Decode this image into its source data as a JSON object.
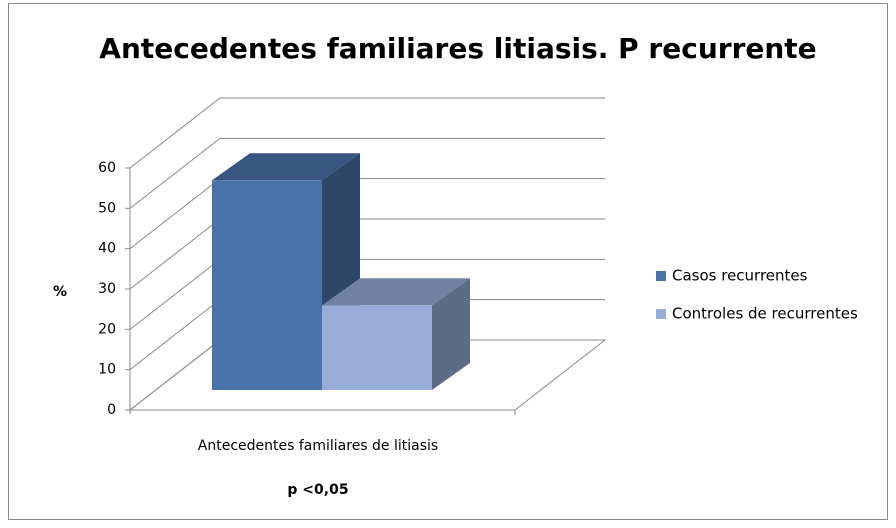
{
  "chart_data": {
    "type": "bar3d",
    "title": "Antecedentes familiares litiasis. P recurrente",
    "categories": [
      "Antecedentes familiares de litiasis"
    ],
    "series": [
      {
        "name": "Casos recurrentes",
        "color": "#4a72aa",
        "values": [
          52
        ]
      },
      {
        "name": "Controles de recurrentes",
        "color": "#97acd6",
        "values": [
          21
        ]
      }
    ],
    "y_label": "%",
    "annotation": "p <0,05",
    "ylim": [
      0,
      60
    ],
    "yticks": [
      0,
      10,
      20,
      30,
      40,
      50,
      60
    ],
    "grid": true,
    "legend": "right"
  }
}
